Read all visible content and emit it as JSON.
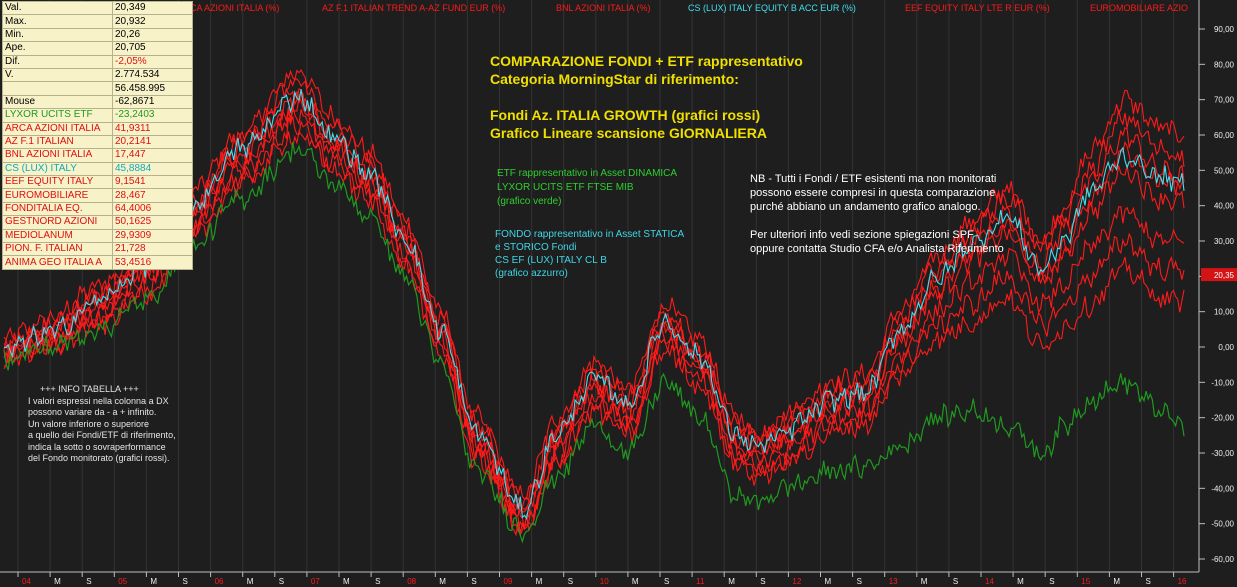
{
  "table": {
    "rows": [
      {
        "label": "Val.",
        "value": "20,349",
        "style": "plain"
      },
      {
        "label": "Max.",
        "value": "20,932",
        "style": "plain"
      },
      {
        "label": "Min.",
        "value": "20,26",
        "style": "plain"
      },
      {
        "label": "Ape.",
        "value": "20,705",
        "style": "plain"
      },
      {
        "label": "Dif.",
        "value": "-2,05%",
        "style": "neg"
      },
      {
        "label": "V.",
        "value": "2.774.534",
        "style": "plain"
      },
      {
        "label": "",
        "value": "56.458.995",
        "style": "plain"
      },
      {
        "label": "Mouse",
        "value": "-62,8671",
        "style": "plain"
      },
      {
        "label": "LYXOR UCITS ETF",
        "value": "-23,2403",
        "style": "green"
      },
      {
        "label": "ARCA AZIONI ITALIA",
        "value": "41,9311",
        "style": "red"
      },
      {
        "label": "AZ F.1 ITALIAN",
        "value": "20,2141",
        "style": "red"
      },
      {
        "label": "BNL AZIONI ITALIA",
        "value": "17,447",
        "style": "red"
      },
      {
        "label": "CS (LUX) ITALY",
        "value": "45,8884",
        "style": "cyan"
      },
      {
        "label": "EEF EQUITY ITALY",
        "value": "9,1541",
        "style": "red"
      },
      {
        "label": "EUROMOBILIARE",
        "value": "28,467",
        "style": "red"
      },
      {
        "label": "FONDITALIA EQ.",
        "value": "64,4006",
        "style": "red"
      },
      {
        "label": "GESTNORD AZIONI",
        "value": "50,1625",
        "style": "red"
      },
      {
        "label": "MEDIOLANUM",
        "value": "29,9309",
        "style": "red"
      },
      {
        "label": "PION. F. ITALIAN",
        "value": "21,728",
        "style": "red"
      },
      {
        "label": "ANIMA GEO ITALIA A",
        "value": "53,4516",
        "style": "red"
      }
    ]
  },
  "annotations": {
    "title_lines": [
      "COMPARAZIONE FONDI + ETF rappresentativo",
      "Categoria MorningStar di riferimento:",
      "",
      "Fondi Az. ITALIA GROWTH (grafici rossi)",
      "Grafico Lineare scansione GIORNALIERA"
    ],
    "etf_lines": [
      "ETF rappresentativo in Asset DINAMICA",
      "LYXOR UCITS ETF FTSE MIB",
      "(grafico verde)"
    ],
    "fondo_lines": [
      "FONDO rappresentativo in Asset STATICA",
      "e STORICO Fondi",
      "CS EF (LUX) ITALY CL B",
      "(grafico azzurro)"
    ],
    "nb_lines": [
      "NB - Tutti i Fondi / ETF  esistenti ma non monitorati",
      "possono essere compresi in questa comparazione",
      "purché abbiano un andamento grafico analogo.",
      "",
      "Per ulteriori info vedi sezione spiegazioni SPF",
      "oppure contatta Studio CFA e/o Analista Riferimento"
    ],
    "info_header": "+++    INFO TABELLA    +++",
    "info_lines": [
      "I valori espressi nella colonna a DX",
      "possono variare da - a + infinito.",
      "Un valore inferiore o superiore",
      "a quello dei Fondi/ETF di riferimento,",
      "indica la sotto o sovraperformance",
      "del Fondo monitorato (grafici rossi)."
    ]
  },
  "colors": {
    "background": "#1e1e1e",
    "red": "#ff1a1a",
    "green": "#1f9a1f",
    "cyan": "#40e0f0",
    "axis_text": "#f0f0f0",
    "price_tag": "#d41414"
  },
  "chart_data": {
    "type": "line",
    "y_axis_side": "right",
    "ylim": [
      -62,
      95
    ],
    "y_ticks": [
      "90,00",
      "80,00",
      "70,00",
      "60,00",
      "50,00",
      "40,00",
      "30,00",
      "20,00",
      "10,00",
      "0,00",
      "-10,00",
      "-20,00",
      "-30,00",
      "-40,00",
      "-50,00",
      "-60,00"
    ],
    "y_tick_values": [
      90,
      80,
      70,
      60,
      50,
      40,
      30,
      20,
      10,
      0,
      -10,
      -20,
      -30,
      -40,
      -50,
      -60
    ],
    "current_value_tag": "20,35",
    "current_value": 20.35,
    "x_labels": [
      "04",
      "M",
      "S",
      "05",
      "M",
      "S",
      "06",
      "M",
      "S",
      "07",
      "M",
      "S",
      "08",
      "M",
      "S",
      "09",
      "M",
      "S",
      "10",
      "M",
      "S",
      "11",
      "M",
      "S",
      "12",
      "M",
      "S",
      "13",
      "M",
      "S",
      "14",
      "M",
      "S",
      "15",
      "M",
      "S",
      "16"
    ],
    "x": [
      0,
      0.04,
      0.08,
      0.12,
      0.16,
      0.2,
      0.25,
      0.28,
      0.31,
      0.34,
      0.37,
      0.4,
      0.44,
      0.47,
      0.5,
      0.53,
      0.56,
      0.59,
      0.62,
      0.64,
      0.66,
      0.68,
      0.7,
      0.73,
      0.76,
      0.79,
      0.82,
      0.85,
      0.88,
      0.9,
      0.92,
      0.95,
      0.98,
      1.0
    ],
    "legend": [
      {
        "name": "CA AZIONI ITALIA  (%)",
        "color": "#ff1a1a"
      },
      {
        "name": "AZ F.1 ITALIAN TREND A-AZ FUND EUR  (%)",
        "color": "#ff1a1a"
      },
      {
        "name": "BNL AZIONI ITALIA  (%)",
        "color": "#ff1a1a"
      },
      {
        "name": "CS (LUX) ITALY EQUITY B ACC EUR  (%)",
        "color": "#40e0f0"
      },
      {
        "name": "EEF EQUITY ITALY LTE R EUR  (%)",
        "color": "#ff1a1a"
      },
      {
        "name": "EUROMOBILIARE AZIO",
        "color": "#ff1a1a"
      }
    ],
    "series": [
      {
        "color": "red",
        "values": [
          2,
          8,
          17,
          26,
          44,
          60,
          78,
          65,
          55,
          36,
          10,
          -20,
          -42,
          -20,
          -5,
          -12,
          12,
          2,
          -20,
          -25,
          -20,
          -15,
          -10,
          -8,
          10,
          25,
          35,
          45,
          30,
          40,
          55,
          70,
          62,
          60
        ]
      },
      {
        "color": "red",
        "values": [
          -1,
          5,
          13,
          23,
          40,
          56,
          72,
          60,
          50,
          32,
          6,
          -24,
          -46,
          -24,
          -9,
          -16,
          8,
          -2,
          -24,
          -28,
          -24,
          -19,
          -14,
          -12,
          6,
          20,
          30,
          38,
          24,
          34,
          46,
          60,
          50,
          48
        ]
      },
      {
        "color": "red",
        "values": [
          -2,
          3,
          11,
          21,
          37,
          53,
          68,
          57,
          47,
          29,
          4,
          -27,
          -48,
          -27,
          -12,
          -19,
          5,
          -5,
          -27,
          -31,
          -27,
          -22,
          -17,
          -15,
          2,
          15,
          25,
          32,
          18,
          26,
          38,
          50,
          42,
          41
        ]
      },
      {
        "color": "red",
        "values": [
          0,
          6,
          15,
          25,
          42,
          58,
          75,
          62,
          52,
          34,
          8,
          -22,
          -44,
          -22,
          -7,
          -14,
          10,
          0,
          -22,
          -26,
          -22,
          -17,
          -12,
          -10,
          8,
          22,
          33,
          42,
          28,
          37,
          50,
          65,
          56,
          54
        ]
      },
      {
        "color": "red",
        "values": [
          -2,
          2,
          9,
          19,
          35,
          50,
          66,
          55,
          45,
          27,
          2,
          -28,
          -50,
          -29,
          -14,
          -21,
          3,
          -7,
          -29,
          -33,
          -30,
          -25,
          -20,
          -18,
          -2,
          10,
          18,
          26,
          12,
          18,
          28,
          38,
          30,
          30
        ]
      },
      {
        "color": "red",
        "values": [
          -3,
          1,
          8,
          17,
          33,
          48,
          63,
          52,
          43,
          25,
          0,
          -30,
          -51,
          -31,
          -16,
          -23,
          1,
          -9,
          -31,
          -35,
          -32,
          -27,
          -22,
          -20,
          -5,
          6,
          12,
          20,
          6,
          12,
          20,
          30,
          22,
          22
        ]
      },
      {
        "color": "red",
        "values": [
          -4,
          0,
          6,
          15,
          31,
          46,
          60,
          50,
          41,
          23,
          -2,
          -32,
          -52,
          -33,
          -18,
          -25,
          -1,
          -11,
          -33,
          -37,
          -34,
          -29,
          -24,
          -22,
          -8,
          2,
          7,
          14,
          0,
          6,
          12,
          22,
          14,
          13
        ]
      },
      {
        "color": "red",
        "values": [
          -1,
          4,
          12,
          22,
          38,
          54,
          70,
          58,
          48,
          30,
          5,
          -25,
          -47,
          -26,
          -11,
          -18,
          6,
          -4,
          -26,
          -30,
          -26,
          -21,
          -16,
          -14,
          3,
          17,
          27,
          35,
          20,
          28,
          42,
          55,
          47,
          46
        ]
      },
      {
        "color": "cyan",
        "values": [
          -1,
          4,
          13,
          23,
          40,
          56,
          71,
          59,
          49,
          31,
          5,
          -24,
          -46,
          -24,
          -9,
          -16,
          7,
          -3,
          -25,
          -28,
          -25,
          -20,
          -15,
          -13,
          5,
          19,
          29,
          37,
          22,
          31,
          44,
          54,
          48,
          46
        ]
      },
      {
        "color": "green",
        "values": [
          -3,
          0,
          5,
          13,
          28,
          42,
          56,
          46,
          37,
          20,
          -5,
          -35,
          -52,
          -36,
          -22,
          -30,
          -10,
          -20,
          -42,
          -44,
          -40,
          -38,
          -35,
          -34,
          -28,
          -20,
          -18,
          -22,
          -30,
          -22,
          -15,
          -10,
          -18,
          -23
        ]
      }
    ]
  }
}
